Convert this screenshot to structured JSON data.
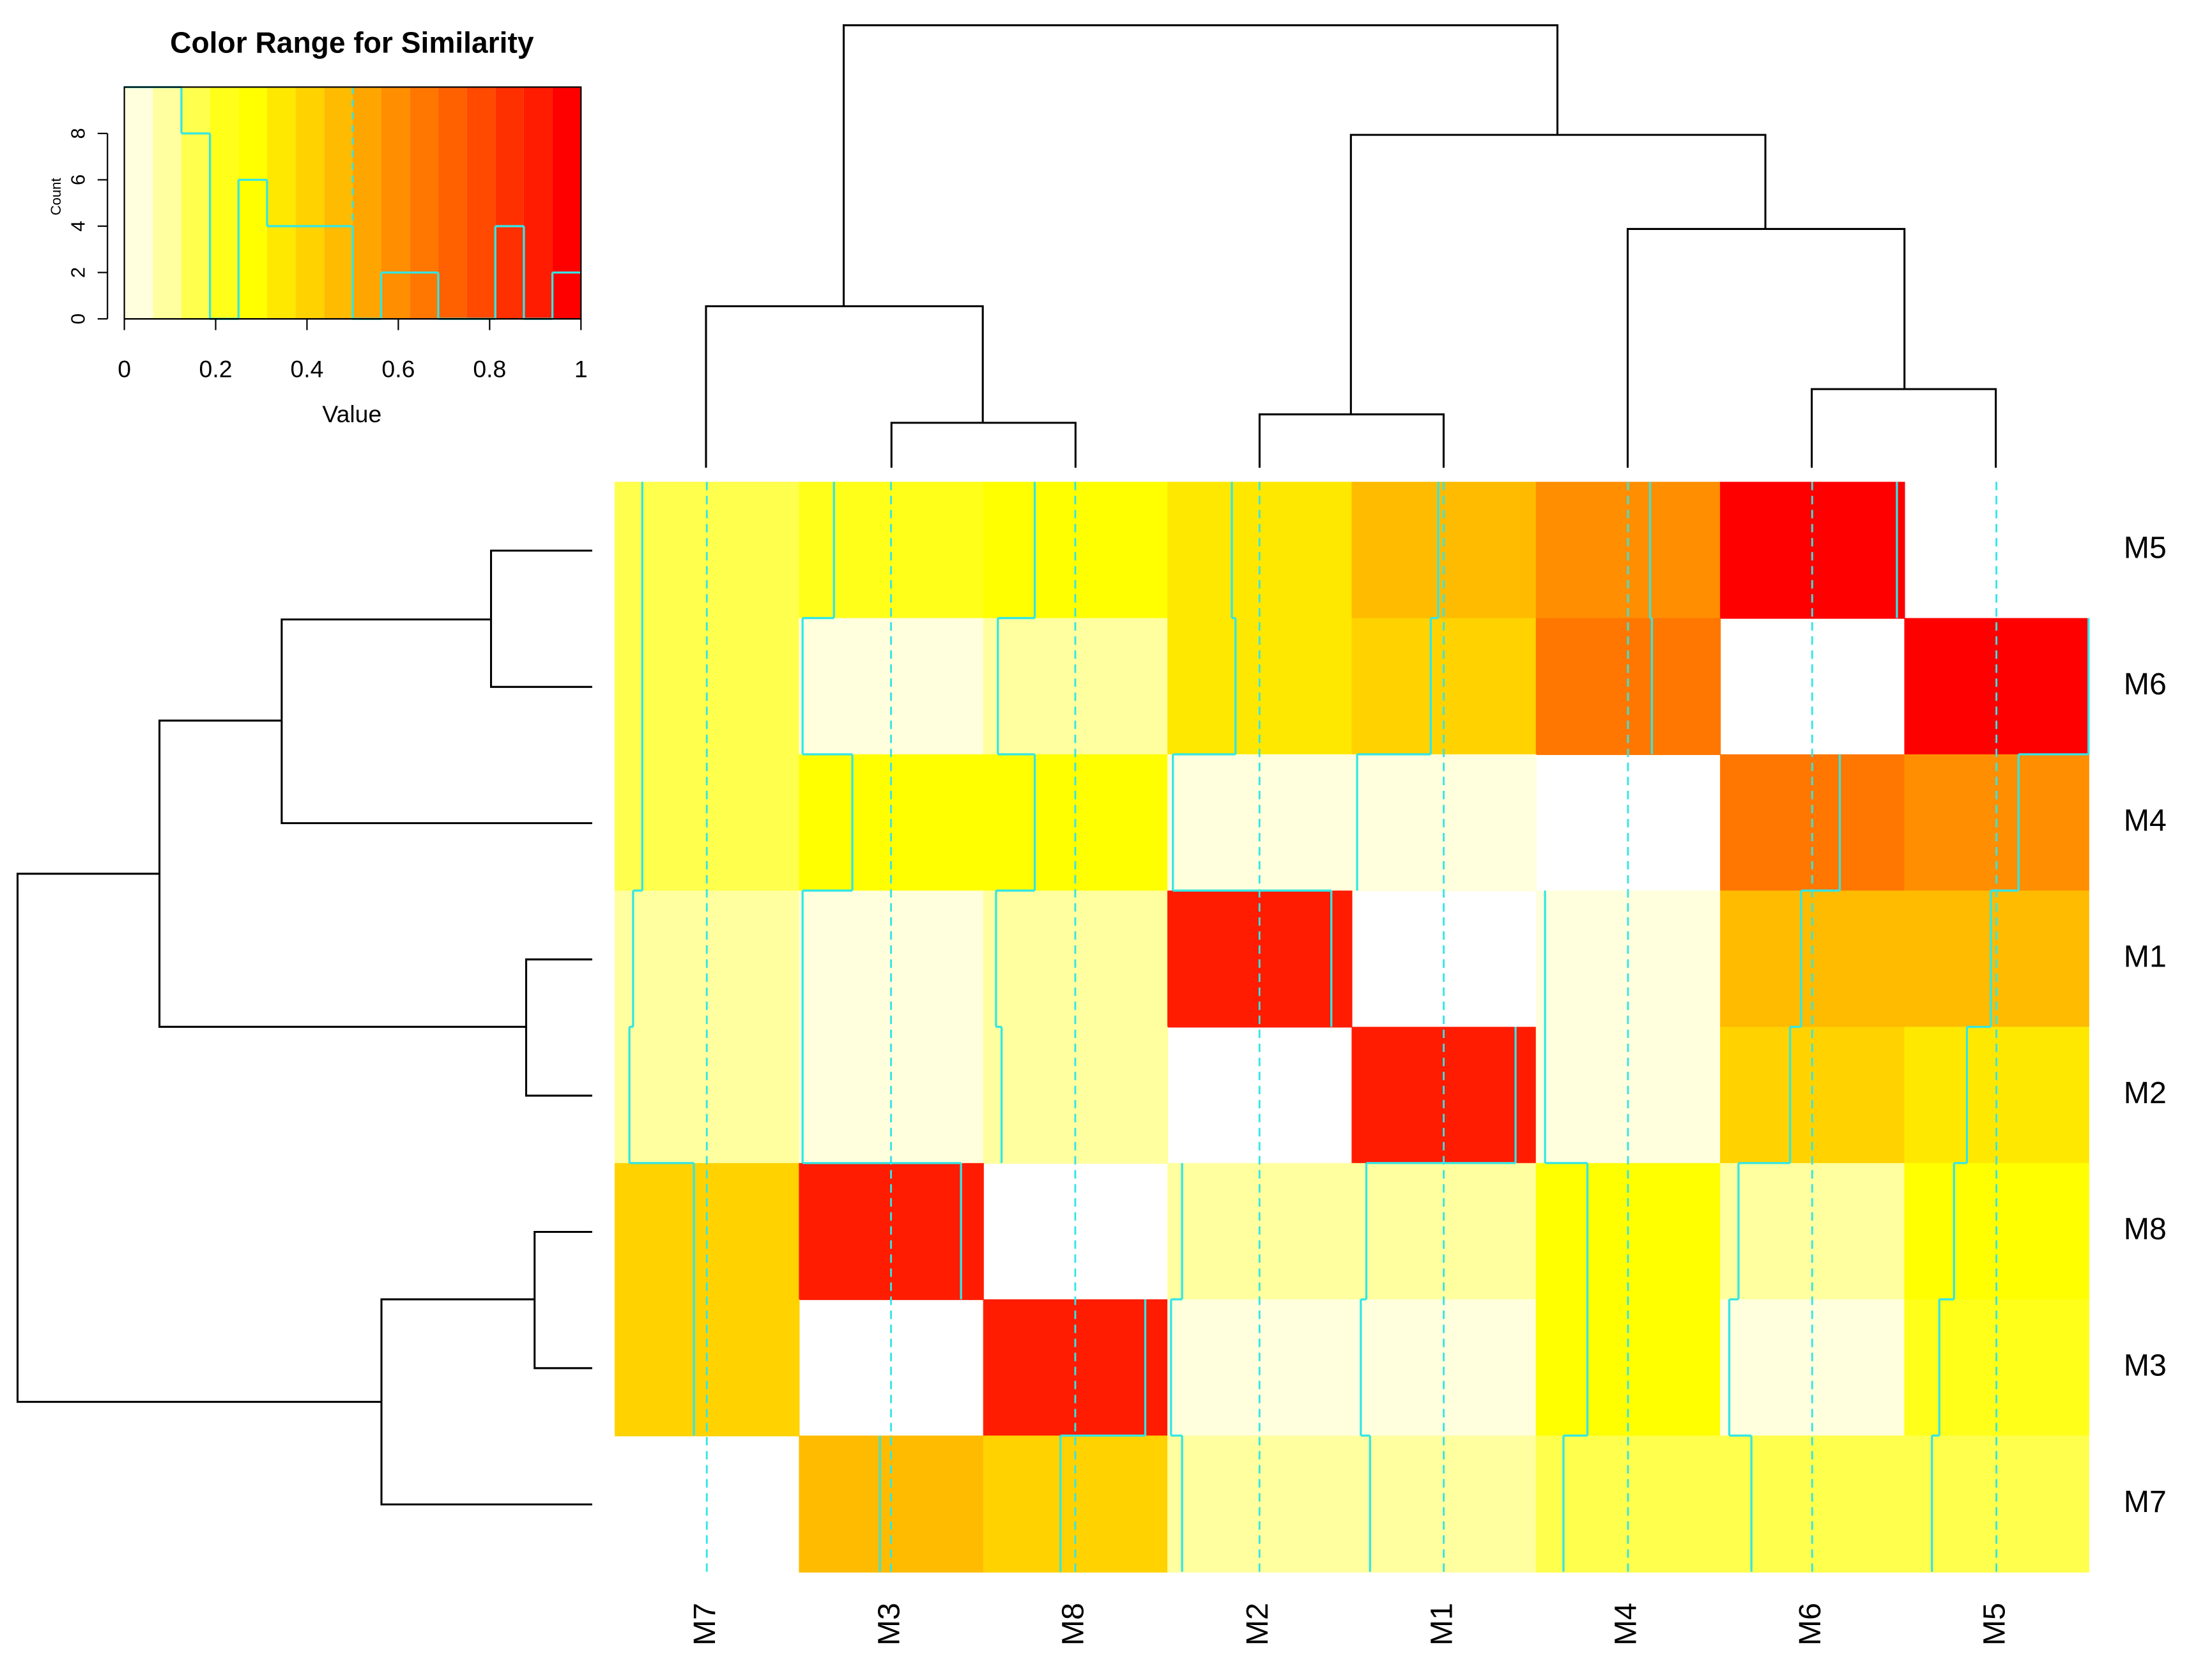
{
  "chart_data": {
    "type": "heatmap",
    "rows": [
      "M5",
      "M6",
      "M4",
      "M1",
      "M2",
      "M8",
      "M3",
      "M7"
    ],
    "columns": [
      "M7",
      "M3",
      "M8",
      "M2",
      "M1",
      "M4",
      "M6",
      "M5"
    ],
    "values": [
      [
        0.15,
        0.19,
        0.28,
        0.35,
        0.47,
        0.62,
        0.96,
        null
      ],
      [
        0.15,
        0.02,
        0.08,
        0.37,
        0.43,
        0.63,
        null,
        1.0
      ],
      [
        0.15,
        0.29,
        0.28,
        0.03,
        0.03,
        null,
        0.65,
        0.62
      ],
      [
        0.1,
        0.02,
        0.07,
        0.89,
        null,
        0.05,
        0.44,
        0.47
      ],
      [
        0.08,
        0.02,
        0.1,
        null,
        0.89,
        0.05,
        0.38,
        0.34
      ],
      [
        0.43,
        0.88,
        null,
        0.08,
        0.08,
        0.28,
        0.1,
        0.27
      ],
      [
        0.43,
        null,
        0.88,
        0.02,
        0.05,
        0.28,
        0.05,
        0.19
      ],
      [
        null,
        0.44,
        0.42,
        0.08,
        0.1,
        0.15,
        0.17,
        0.15
      ]
    ],
    "trace_color": "#33e6e6",
    "vline": 0.5,
    "key": {
      "title": "Color Range for Similarity",
      "xlabel": "Value",
      "ylabel": "Count",
      "bins": [
        0,
        0.0625,
        0.125,
        0.1875,
        0.25,
        0.3125,
        0.375,
        0.4375,
        0.5,
        0.5625,
        0.625,
        0.6875,
        0.75,
        0.8125,
        0.875,
        0.9375,
        1
      ],
      "counts": [
        10,
        10,
        8,
        0,
        6,
        4,
        4,
        4,
        0,
        2,
        2,
        0,
        0,
        4,
        0,
        2
      ],
      "colors": [
        "#FFFFDD",
        "#FFFF9F",
        "#FFFF4D",
        "#FFFF1A",
        "#FFFF00",
        "#FFE800",
        "#FFD200",
        "#FFBB00",
        "#FFA500",
        "#FF8E00",
        "#FF7700",
        "#FF6100",
        "#FF4A00",
        "#FF3000",
        "#FF1C00",
        "#FF0000"
      ],
      "xlim": [
        0,
        1
      ],
      "ylim": [
        0,
        10
      ],
      "xticks": [
        0,
        0.2,
        0.4,
        0.6,
        0.8,
        1
      ],
      "yticks": [
        0,
        2,
        4,
        6,
        8
      ]
    }
  }
}
